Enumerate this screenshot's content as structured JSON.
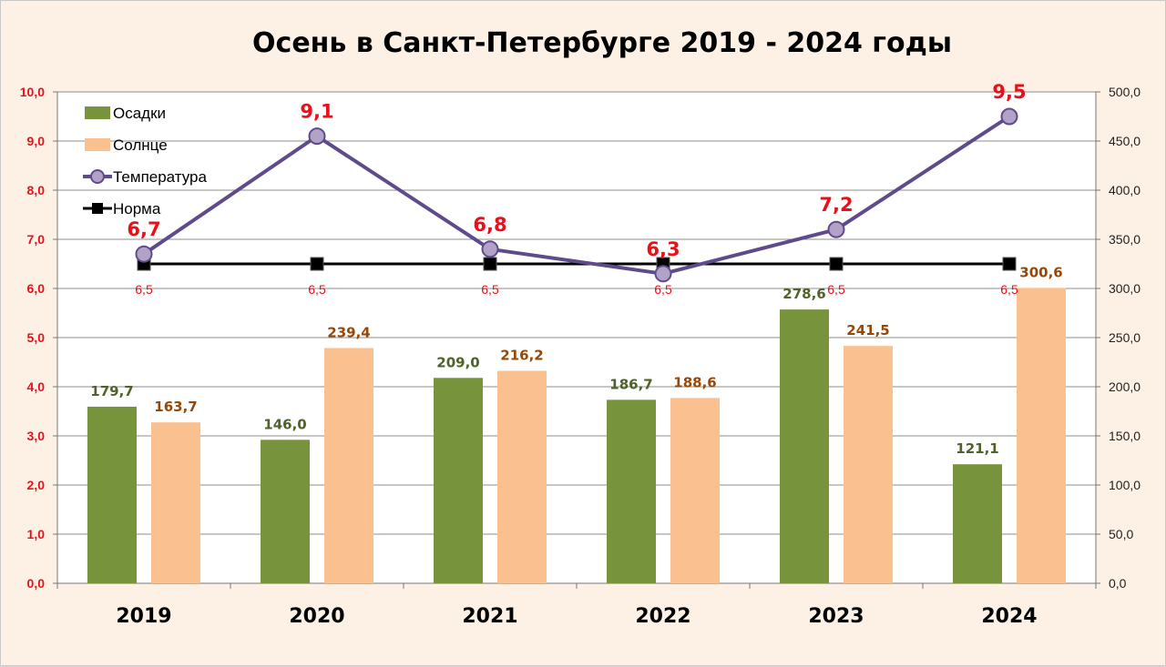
{
  "chart_data": {
    "type": "bar",
    "title": "Осень в Санкт-Петербурге 2019 - 2024 годы",
    "categories": [
      "2019",
      "2020",
      "2021",
      "2022",
      "2023",
      "2024"
    ],
    "y_left": {
      "ylim": [
        0,
        10
      ],
      "ticks": [
        "0,0",
        "1,0",
        "2,0",
        "3,0",
        "4,0",
        "5,0",
        "6,0",
        "7,0",
        "8,0",
        "9,0",
        "10,0"
      ]
    },
    "y_right": {
      "ylim": [
        0,
        500
      ],
      "ticks": [
        "0,0",
        "50,0",
        "100,0",
        "150,0",
        "200,0",
        "250,0",
        "300,0",
        "350,0",
        "400,0",
        "450,0",
        "500,0"
      ]
    },
    "series": [
      {
        "name": "Осадки",
        "type": "bar",
        "axis": "right",
        "color": "#77933c",
        "values": [
          179.7,
          146.0,
          209.0,
          186.7,
          278.6,
          121.1
        ],
        "labels": [
          "179,7",
          "146,0",
          "209,0",
          "186,7",
          "278,6",
          "121,1"
        ]
      },
      {
        "name": "Солнце",
        "type": "bar",
        "axis": "right",
        "color": "#fac090",
        "values": [
          163.7,
          239.4,
          216.2,
          188.6,
          241.5,
          300.6
        ],
        "labels": [
          "163,7",
          "239,4",
          "216,2",
          "188,6",
          "241,5",
          "300,6"
        ]
      },
      {
        "name": "Температура",
        "type": "line",
        "axis": "left",
        "color": "#5f4b8b",
        "marker_color": "#b3a2c7",
        "values": [
          6.7,
          9.1,
          6.8,
          6.3,
          7.2,
          9.5
        ],
        "labels": [
          "6,7",
          "9,1",
          "6,8",
          "6,3",
          "7,2",
          "9,5"
        ]
      },
      {
        "name": "Норма",
        "type": "line",
        "axis": "left",
        "color": "#000000",
        "values": [
          6.5,
          6.5,
          6.5,
          6.5,
          6.5,
          6.5
        ],
        "labels": [
          "6,5",
          "6,5",
          "6,5",
          "6,5",
          "6,5",
          "6,5"
        ]
      }
    ],
    "grid": true,
    "legend": "top-left"
  }
}
